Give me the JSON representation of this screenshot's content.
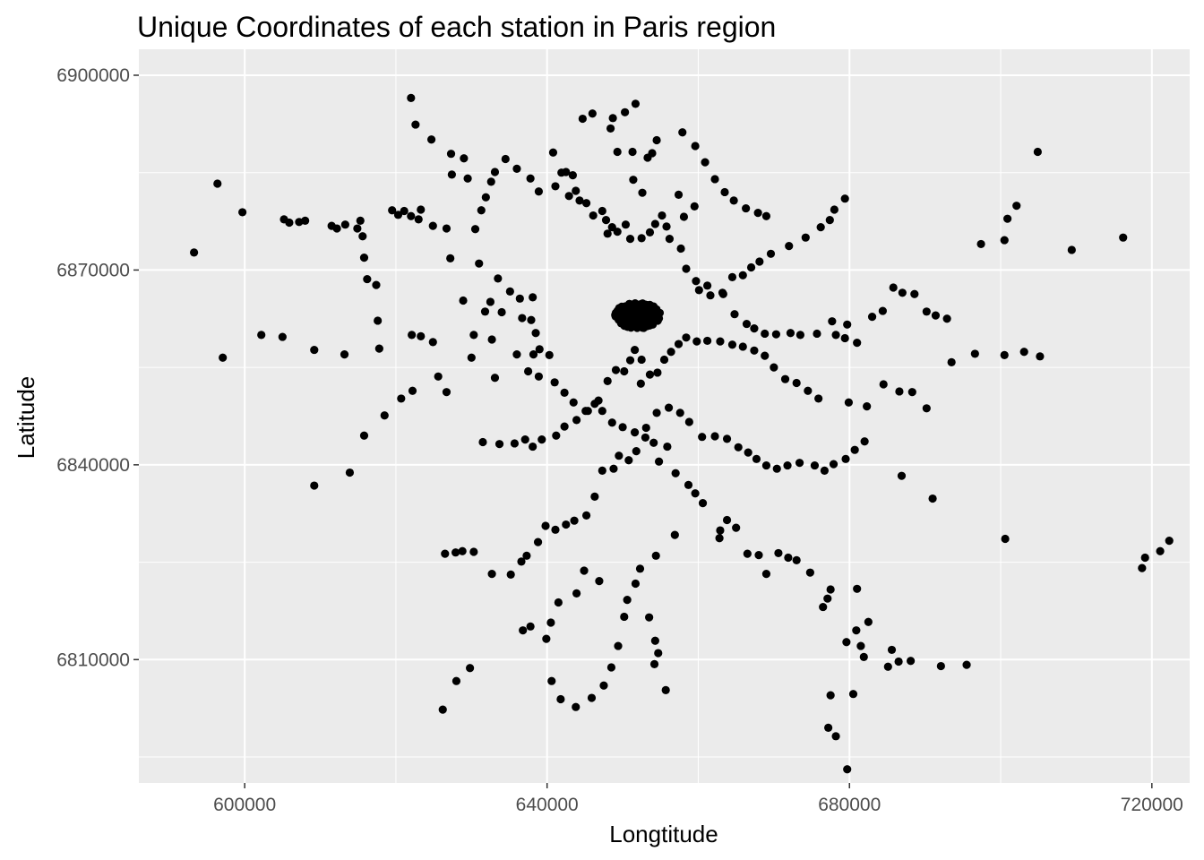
{
  "chart_data": {
    "type": "scatter",
    "title": "Unique Coordinates of each station in Paris region",
    "xlabel": "Longtitude",
    "ylabel": "Latitude",
    "xlim": [
      586000,
      725000
    ],
    "ylim": [
      6791000,
      6904000
    ],
    "xticks": [
      600000,
      640000,
      680000,
      720000
    ],
    "yticks": [
      6810000,
      6840000,
      6870000,
      6900000
    ],
    "xtick_labels": [
      "600000",
      "640000",
      "680000",
      "720000"
    ],
    "ytick_labels": [
      "6810000",
      "6840000",
      "6870000",
      "6900000"
    ],
    "grid": true,
    "panel_color": "#ebebeb",
    "grid_color": "#ffffff",
    "point_color": "#000000",
    "points": [
      [
        593300,
        6872700
      ],
      [
        596400,
        6883300
      ],
      [
        599700,
        6878900
      ],
      [
        597100,
        6856500
      ],
      [
        602200,
        6860000
      ],
      [
        605000,
        6859700
      ],
      [
        609200,
        6857700
      ],
      [
        609200,
        6836800
      ],
      [
        613200,
        6857000
      ],
      [
        613900,
        6838800
      ],
      [
        615800,
        6844500
      ],
      [
        617800,
        6857900
      ],
      [
        605200,
        6877800
      ],
      [
        605900,
        6877300
      ],
      [
        607200,
        6877400
      ],
      [
        608000,
        6877600
      ],
      [
        611500,
        6876800
      ],
      [
        612200,
        6876400
      ],
      [
        613300,
        6877000
      ],
      [
        614900,
        6876400
      ],
      [
        615300,
        6877600
      ],
      [
        615600,
        6875200
      ],
      [
        615800,
        6871900
      ],
      [
        616200,
        6868600
      ],
      [
        617400,
        6867700
      ],
      [
        617600,
        6862200
      ],
      [
        618500,
        6847600
      ],
      [
        620700,
        6850200
      ],
      [
        622200,
        6851400
      ],
      [
        622100,
        6860000
      ],
      [
        623300,
        6859800
      ],
      [
        624900,
        6858900
      ],
      [
        625600,
        6853600
      ],
      [
        626700,
        6851200
      ],
      [
        619500,
        6879200
      ],
      [
        620300,
        6878500
      ],
      [
        621100,
        6879100
      ],
      [
        622000,
        6878300
      ],
      [
        623000,
        6877800
      ],
      [
        623300,
        6879300
      ],
      [
        624900,
        6876800
      ],
      [
        626700,
        6876400
      ],
      [
        627200,
        6871800
      ],
      [
        622000,
        6896500
      ],
      [
        622600,
        6892400
      ],
      [
        624700,
        6890100
      ],
      [
        627300,
        6887900
      ],
      [
        629000,
        6887200
      ],
      [
        629500,
        6884100
      ],
      [
        627400,
        6884700
      ],
      [
        630500,
        6876300
      ],
      [
        631000,
        6871000
      ],
      [
        631800,
        6863600
      ],
      [
        632700,
        6859300
      ],
      [
        633100,
        6853400
      ],
      [
        630000,
        6856500
      ],
      [
        628900,
        6865300
      ],
      [
        630300,
        6860000
      ],
      [
        632500,
        6865100
      ],
      [
        633500,
        6868700
      ],
      [
        634000,
        6863500
      ],
      [
        635100,
        6866700
      ],
      [
        636400,
        6865600
      ],
      [
        636700,
        6862600
      ],
      [
        638100,
        6865800
      ],
      [
        637900,
        6862300
      ],
      [
        638500,
        6860300
      ],
      [
        636000,
        6857000
      ],
      [
        638200,
        6857000
      ],
      [
        637500,
        6854400
      ],
      [
        639000,
        6857800
      ],
      [
        638900,
        6853600
      ],
      [
        640300,
        6856900
      ],
      [
        641000,
        6852700
      ],
      [
        642300,
        6851100
      ],
      [
        643500,
        6849600
      ],
      [
        645400,
        6848300
      ],
      [
        646800,
        6849900
      ],
      [
        648000,
        6852900
      ],
      [
        649100,
        6854600
      ],
      [
        650200,
        6854400
      ],
      [
        651000,
        6856100
      ],
      [
        651600,
        6857700
      ],
      [
        652500,
        6856200
      ],
      [
        631300,
        6879200
      ],
      [
        631900,
        6881200
      ],
      [
        632600,
        6883600
      ],
      [
        633100,
        6885100
      ],
      [
        634500,
        6887100
      ],
      [
        636000,
        6885600
      ],
      [
        637800,
        6884100
      ],
      [
        638900,
        6882100
      ],
      [
        641100,
        6882900
      ],
      [
        642500,
        6885100
      ],
      [
        643400,
        6884600
      ],
      [
        643800,
        6882200
      ],
      [
        644300,
        6880700
      ],
      [
        646100,
        6878400
      ],
      [
        647800,
        6877700
      ],
      [
        648600,
        6876600
      ],
      [
        649300,
        6875900
      ],
      [
        650400,
        6877000
      ],
      [
        651000,
        6874800
      ],
      [
        652500,
        6874900
      ],
      [
        653600,
        6875800
      ],
      [
        654300,
        6877100
      ],
      [
        655200,
        6878400
      ],
      [
        655800,
        6876700
      ],
      [
        651400,
        6883900
      ],
      [
        652600,
        6881900
      ],
      [
        653300,
        6887300
      ],
      [
        653900,
        6888000
      ],
      [
        654500,
        6890000
      ],
      [
        648700,
        6893400
      ],
      [
        650300,
        6894300
      ],
      [
        651300,
        6888200
      ],
      [
        651700,
        6895600
      ],
      [
        644700,
        6893300
      ],
      [
        646000,
        6894100
      ],
      [
        648400,
        6891800
      ],
      [
        649300,
        6888200
      ],
      [
        640800,
        6888100
      ],
      [
        641900,
        6885000
      ],
      [
        642900,
        6881400
      ],
      [
        645200,
        6880300
      ],
      [
        647300,
        6879100
      ],
      [
        648000,
        6875600
      ],
      [
        656200,
        6874800
      ],
      [
        657700,
        6873300
      ],
      [
        658400,
        6870200
      ],
      [
        659700,
        6868300
      ],
      [
        661200,
        6867600
      ],
      [
        663200,
        6866500
      ],
      [
        664500,
        6868900
      ],
      [
        665900,
        6869200
      ],
      [
        667000,
        6870400
      ],
      [
        668100,
        6871300
      ],
      [
        669600,
        6872500
      ],
      [
        672000,
        6873700
      ],
      [
        674200,
        6875000
      ],
      [
        676200,
        6876600
      ],
      [
        677400,
        6877700
      ],
      [
        678000,
        6879300
      ],
      [
        679400,
        6881000
      ],
      [
        657900,
        6891200
      ],
      [
        659600,
        6889100
      ],
      [
        660900,
        6886600
      ],
      [
        662200,
        6884000
      ],
      [
        663500,
        6882000
      ],
      [
        664700,
        6880700
      ],
      [
        666300,
        6879500
      ],
      [
        667900,
        6878800
      ],
      [
        669000,
        6878300
      ],
      [
        659500,
        6879800
      ],
      [
        658100,
        6878200
      ],
      [
        657400,
        6881600
      ],
      [
        660100,
        6866900
      ],
      [
        661600,
        6866100
      ],
      [
        663300,
        6866300
      ],
      [
        664800,
        6863200
      ],
      [
        666400,
        6861700
      ],
      [
        667400,
        6861000
      ],
      [
        668800,
        6860200
      ],
      [
        670300,
        6860100
      ],
      [
        672200,
        6860300
      ],
      [
        673500,
        6860000
      ],
      [
        675700,
        6860200
      ],
      [
        677700,
        6862100
      ],
      [
        679700,
        6861600
      ],
      [
        678200,
        6860000
      ],
      [
        679400,
        6859500
      ],
      [
        681000,
        6858800
      ],
      [
        683000,
        6862800
      ],
      [
        684400,
        6863700
      ],
      [
        685800,
        6867300
      ],
      [
        687000,
        6866500
      ],
      [
        688600,
        6866300
      ],
      [
        690200,
        6863600
      ],
      [
        691400,
        6863000
      ],
      [
        692900,
        6862500
      ],
      [
        693500,
        6855800
      ],
      [
        696600,
        6857100
      ],
      [
        700500,
        6856900
      ],
      [
        703100,
        6857400
      ],
      [
        705200,
        6856700
      ],
      [
        690200,
        6848700
      ],
      [
        686900,
        6838300
      ],
      [
        691000,
        6834800
      ],
      [
        700600,
        6828600
      ],
      [
        697400,
        6874000
      ],
      [
        700500,
        6874600
      ],
      [
        700900,
        6877900
      ],
      [
        702100,
        6879900
      ],
      [
        704900,
        6888200
      ],
      [
        709400,
        6873100
      ],
      [
        716200,
        6875000
      ],
      [
        718700,
        6824100
      ],
      [
        719100,
        6825700
      ],
      [
        721100,
        6826700
      ],
      [
        722300,
        6828300
      ],
      [
        692100,
        6809000
      ],
      [
        695500,
        6809200
      ],
      [
        688100,
        6809800
      ],
      [
        685100,
        6808900
      ],
      [
        685600,
        6811500
      ],
      [
        686500,
        6809700
      ],
      [
        681900,
        6810400
      ],
      [
        682500,
        6815800
      ],
      [
        681500,
        6812100
      ],
      [
        680900,
        6814500
      ],
      [
        679600,
        6812700
      ],
      [
        681000,
        6820900
      ],
      [
        680500,
        6804700
      ],
      [
        677500,
        6804500
      ],
      [
        677200,
        6799500
      ],
      [
        678200,
        6798200
      ],
      [
        679700,
        6793100
      ],
      [
        677100,
        6819400
      ],
      [
        677500,
        6820800
      ],
      [
        676500,
        6818100
      ],
      [
        674800,
        6823400
      ],
      [
        673000,
        6825300
      ],
      [
        671900,
        6825700
      ],
      [
        670600,
        6826400
      ],
      [
        669000,
        6823200
      ],
      [
        668000,
        6826100
      ],
      [
        666500,
        6826300
      ],
      [
        665000,
        6830300
      ],
      [
        663800,
        6831500
      ],
      [
        662900,
        6829900
      ],
      [
        662800,
        6828700
      ],
      [
        660600,
        6834100
      ],
      [
        659600,
        6835600
      ],
      [
        658700,
        6836900
      ],
      [
        657000,
        6838700
      ],
      [
        654800,
        6840500
      ],
      [
        655900,
        6842800
      ],
      [
        654100,
        6843400
      ],
      [
        653000,
        6844200
      ],
      [
        651800,
        6842100
      ],
      [
        650800,
        6840700
      ],
      [
        649500,
        6841400
      ],
      [
        648800,
        6839400
      ],
      [
        647300,
        6839100
      ],
      [
        646300,
        6835100
      ],
      [
        645200,
        6832200
      ],
      [
        643600,
        6831400
      ],
      [
        642500,
        6830800
      ],
      [
        641100,
        6830000
      ],
      [
        639800,
        6830600
      ],
      [
        638800,
        6828100
      ],
      [
        637300,
        6826000
      ],
      [
        636600,
        6825100
      ],
      [
        635200,
        6823100
      ],
      [
        632700,
        6823200
      ],
      [
        630300,
        6826600
      ],
      [
        628800,
        6826700
      ],
      [
        627900,
        6826500
      ],
      [
        626500,
        6826300
      ],
      [
        626200,
        6802300
      ],
      [
        628000,
        6806700
      ],
      [
        629800,
        6808700
      ],
      [
        636800,
        6814500
      ],
      [
        637800,
        6815100
      ],
      [
        646900,
        6822100
      ],
      [
        651700,
        6821700
      ],
      [
        653500,
        6816500
      ],
      [
        654200,
        6809300
      ],
      [
        654700,
        6811000
      ],
      [
        655700,
        6805300
      ],
      [
        654300,
        6812900
      ],
      [
        656900,
        6829200
      ],
      [
        644900,
        6823700
      ],
      [
        643900,
        6820200
      ],
      [
        641500,
        6818800
      ],
      [
        640500,
        6815700
      ],
      [
        639900,
        6813200
      ],
      [
        640600,
        6806700
      ],
      [
        641800,
        6803900
      ],
      [
        643800,
        6802700
      ],
      [
        645900,
        6804100
      ],
      [
        647500,
        6806000
      ],
      [
        648500,
        6808800
      ],
      [
        649400,
        6812100
      ],
      [
        650200,
        6816600
      ],
      [
        650600,
        6819200
      ],
      [
        652300,
        6824000
      ],
      [
        654400,
        6826000
      ],
      [
        631500,
        6843500
      ],
      [
        633700,
        6843200
      ],
      [
        635700,
        6843300
      ],
      [
        637100,
        6843900
      ],
      [
        638100,
        6842800
      ],
      [
        639300,
        6843900
      ],
      [
        641200,
        6844500
      ],
      [
        642300,
        6845900
      ],
      [
        643900,
        6846900
      ],
      [
        645100,
        6848300
      ],
      [
        646300,
        6849400
      ],
      [
        647300,
        6848300
      ],
      [
        648600,
        6846500
      ],
      [
        650000,
        6845800
      ],
      [
        651600,
        6845000
      ],
      [
        653100,
        6845700
      ],
      [
        654500,
        6848000
      ],
      [
        656100,
        6848800
      ],
      [
        657600,
        6848000
      ],
      [
        658800,
        6846600
      ],
      [
        660500,
        6844300
      ],
      [
        662200,
        6844400
      ],
      [
        663800,
        6844000
      ],
      [
        665300,
        6842700
      ],
      [
        666600,
        6841900
      ],
      [
        667700,
        6840900
      ],
      [
        669000,
        6839900
      ],
      [
        670400,
        6839400
      ],
      [
        671800,
        6839900
      ],
      [
        673400,
        6840300
      ],
      [
        675400,
        6839900
      ],
      [
        676700,
        6839100
      ],
      [
        677900,
        6840100
      ],
      [
        679500,
        6840900
      ],
      [
        680700,
        6842300
      ],
      [
        682000,
        6843600
      ],
      [
        686600,
        6851300
      ],
      [
        688300,
        6851200
      ],
      [
        684500,
        6852400
      ],
      [
        682300,
        6849000
      ],
      [
        679900,
        6849600
      ],
      [
        675900,
        6850200
      ],
      [
        674500,
        6851400
      ],
      [
        673000,
        6852600
      ],
      [
        671500,
        6853200
      ],
      [
        670000,
        6855000
      ],
      [
        668800,
        6856800
      ],
      [
        667400,
        6857600
      ],
      [
        665900,
        6858200
      ],
      [
        664500,
        6858500
      ],
      [
        662900,
        6859000
      ],
      [
        661200,
        6859100
      ],
      [
        659800,
        6859000
      ],
      [
        658400,
        6859600
      ],
      [
        657400,
        6858600
      ],
      [
        656400,
        6857400
      ],
      [
        655500,
        6856200
      ],
      [
        654600,
        6854200
      ],
      [
        653600,
        6853900
      ],
      [
        652400,
        6852500
      ]
    ],
    "dense_cluster": {
      "center": [
        652000,
        6863000
      ],
      "spread": [
        3000,
        2000
      ],
      "count": 260
    }
  }
}
